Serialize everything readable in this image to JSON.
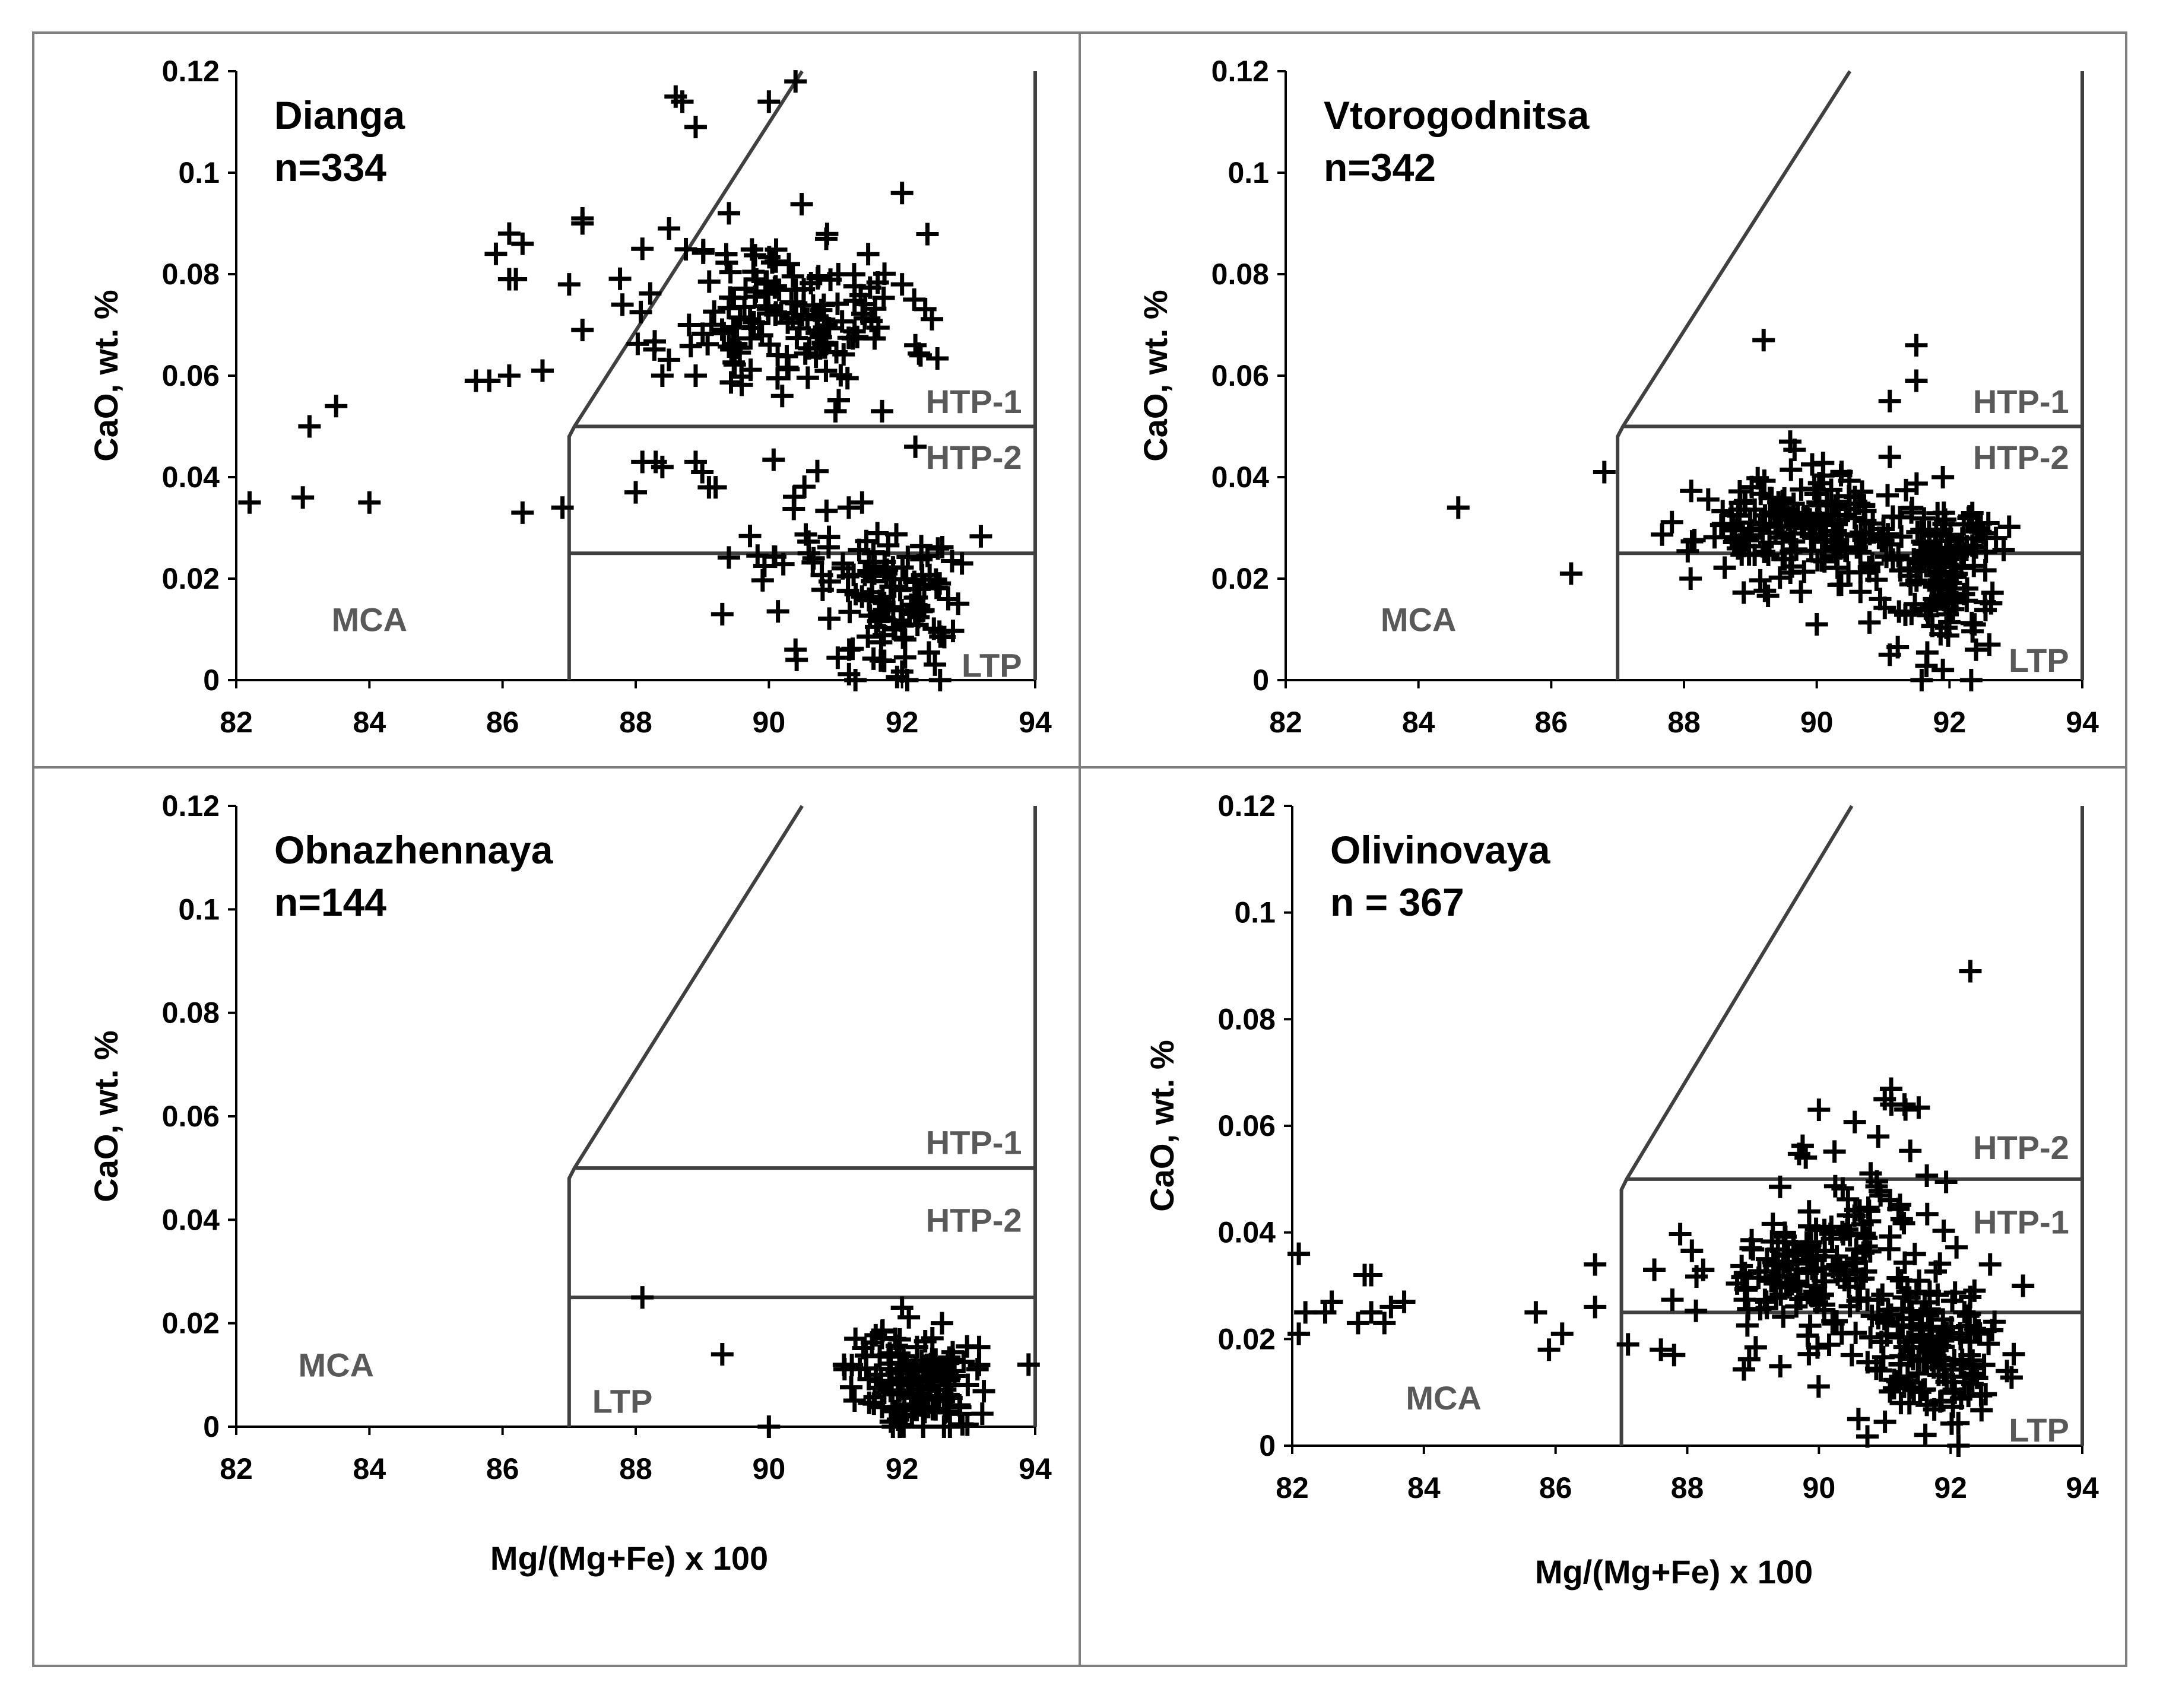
{
  "chart_data": [
    {
      "type": "scatter",
      "title": "Dianga",
      "subtitle": "n=334",
      "xlabel": "",
      "ylabel": "CaO, wt. %",
      "xlim": [
        82,
        94
      ],
      "ylim": [
        0,
        0.12
      ],
      "xticks": [
        "82",
        "84",
        "86",
        "88",
        "90",
        "92",
        "94"
      ],
      "yticks": [
        "0",
        "0.02",
        "0.04",
        "0.06",
        "0.08",
        "0.1",
        "0.12"
      ],
      "fields": {
        "mca": {
          "label": "MCA",
          "at": [
            84,
            0.012
          ]
        },
        "htp1": {
          "label": "HTP-1",
          "at": [
            93.8,
            0.055
          ]
        },
        "htp2": {
          "label": "HTP-2",
          "at": [
            93.8,
            0.044
          ]
        },
        "ltp": {
          "label": "LTP",
          "at": [
            93.8,
            0.003
          ]
        }
      },
      "boundary": {
        "x_cut": 87,
        "y_htp": 0.05,
        "y_ltp": 0.025,
        "diag_top_x": 90.5
      },
      "seed": 11,
      "points": [
        [
          82.2,
          0.035
        ],
        [
          83.0,
          0.036
        ],
        [
          83.1,
          0.05
        ],
        [
          83.5,
          0.054
        ],
        [
          84.0,
          0.035
        ],
        [
          85.6,
          0.059
        ],
        [
          85.8,
          0.059
        ],
        [
          85.9,
          0.084
        ],
        [
          86.1,
          0.088
        ],
        [
          86.1,
          0.079
        ],
        [
          86.2,
          0.079
        ],
        [
          86.3,
          0.086
        ],
        [
          86.1,
          0.06
        ],
        [
          86.3,
          0.033
        ],
        [
          86.6,
          0.061
        ],
        [
          86.9,
          0.034
        ],
        [
          87.0,
          0.078
        ],
        [
          87.2,
          0.09
        ],
        [
          87.2,
          0.091
        ],
        [
          87.2,
          0.069
        ],
        [
          87.8,
          0.074
        ],
        [
          88.1,
          0.085
        ],
        [
          88.1,
          0.043
        ],
        [
          88.3,
          0.043
        ],
        [
          88.0,
          0.037
        ],
        [
          88.4,
          0.042
        ],
        [
          88.5,
          0.089
        ],
        [
          88.4,
          0.06
        ],
        [
          88.6,
          0.115
        ],
        [
          88.7,
          0.114
        ],
        [
          88.8,
          0.07
        ],
        [
          88.9,
          0.109
        ],
        [
          88.9,
          0.06
        ],
        [
          88.9,
          0.043
        ],
        [
          89.0,
          0.041
        ],
        [
          89.1,
          0.038
        ],
        [
          89.2,
          0.038
        ],
        [
          89.3,
          0.013
        ],
        [
          89.4,
          0.092
        ],
        [
          90.0,
          0.114
        ],
        [
          90.4,
          0.118
        ],
        [
          90.2,
          0.056
        ],
        [
          90.5,
          0.072
        ],
        [
          90.3,
          0.082
        ],
        [
          91.0,
          0.053
        ],
        [
          91.7,
          0.053
        ],
        [
          92.0,
          0.096
        ],
        [
          92.0,
          0.078
        ],
        [
          92.2,
          0.066
        ],
        [
          92.2,
          0.046
        ],
        [
          90.6,
          0.025
        ],
        [
          90.4,
          0.006
        ],
        [
          91.2,
          0.034
        ],
        [
          91.4,
          0.035
        ],
        [
          92.9,
          0.023
        ]
      ],
      "clusters": [
        {
          "cx": 90.3,
          "cy": 0.072,
          "sx": 0.9,
          "sy": 0.008,
          "n": 150
        },
        {
          "cx": 91.9,
          "cy": 0.016,
          "sx": 0.55,
          "sy": 0.007,
          "n": 110
        },
        {
          "cx": 90.5,
          "cy": 0.028,
          "sx": 0.5,
          "sy": 0.006,
          "n": 25
        }
      ]
    },
    {
      "type": "scatter",
      "title": "Vtorogodnitsa",
      "subtitle": "n=342",
      "xlabel": "",
      "ylabel": "CaO, wt. %",
      "xlim": [
        82,
        94
      ],
      "ylim": [
        0,
        0.12
      ],
      "xticks": [
        "82",
        "84",
        "86",
        "88",
        "90",
        "92",
        "94"
      ],
      "yticks": [
        "0",
        "0.02",
        "0.04",
        "0.06",
        "0.08",
        "0.1",
        "0.12"
      ],
      "fields": {
        "mca": {
          "label": "MCA",
          "at": [
            84,
            0.012
          ]
        },
        "htp1": {
          "label": "HTP-1",
          "at": [
            93.8,
            0.055
          ]
        },
        "htp2": {
          "label": "HTP-2",
          "at": [
            93.8,
            0.044
          ]
        },
        "ltp": {
          "label": "LTP",
          "at": [
            93.8,
            0.004
          ]
        }
      },
      "boundary": {
        "x_cut": 87,
        "y_htp": 0.05,
        "y_ltp": 0.025,
        "diag_top_x": 90.5
      },
      "seed": 23,
      "points": [
        [
          84.6,
          0.034
        ],
        [
          86.3,
          0.021
        ],
        [
          86.8,
          0.041
        ],
        [
          89.2,
          0.067
        ],
        [
          91.5,
          0.066
        ],
        [
          91.5,
          0.059
        ],
        [
          91.1,
          0.055
        ],
        [
          91.1,
          0.044
        ],
        [
          89.6,
          0.047
        ],
        [
          88.1,
          0.02
        ],
        [
          90.0,
          0.011
        ],
        [
          91.1,
          0.005
        ],
        [
          91.9,
          0.002
        ],
        [
          92.4,
          0.006
        ],
        [
          92.6,
          0.007
        ],
        [
          92.7,
          0.028
        ],
        [
          91.9,
          0.04
        ]
      ],
      "clusters": [
        {
          "cx": 89.7,
          "cy": 0.03,
          "sx": 0.75,
          "sy": 0.005,
          "n": 180
        },
        {
          "cx": 91.8,
          "cy": 0.022,
          "sx": 0.45,
          "sy": 0.008,
          "n": 140
        }
      ]
    },
    {
      "type": "scatter",
      "title": "Obnazhennaya",
      "subtitle": "n=144",
      "xlabel": "Mg/(Mg+Fe) x 100",
      "ylabel": "CaO, wt. %",
      "xlim": [
        82,
        94
      ],
      "ylim": [
        0,
        0.12
      ],
      "xticks": [
        "82",
        "84",
        "86",
        "88",
        "90",
        "92",
        "94"
      ],
      "yticks": [
        "0",
        "0.02",
        "0.04",
        "0.06",
        "0.08",
        "0.1",
        "0.12"
      ],
      "fields": {
        "mca": {
          "label": "MCA",
          "at": [
            83.5,
            0.012
          ]
        },
        "htp1": {
          "label": "HTP-1",
          "at": [
            93.8,
            0.055
          ]
        },
        "htp2": {
          "label": "HTP-2",
          "at": [
            93.8,
            0.04
          ]
        },
        "ltp": {
          "label": "LTP",
          "at": [
            87.8,
            0.005
          ]
        }
      },
      "boundary": {
        "x_cut": 87,
        "y_htp": 0.05,
        "y_ltp": 0.025,
        "diag_top_x": 90.5
      },
      "seed": 37,
      "points": [
        [
          88.1,
          0.025
        ],
        [
          89.3,
          0.014
        ],
        [
          90.0,
          0.0
        ],
        [
          93.9,
          0.012
        ],
        [
          91.3,
          0.017
        ],
        [
          92.0,
          0.023
        ],
        [
          92.6,
          0.02
        ]
      ],
      "clusters": [
        {
          "cx": 92.2,
          "cy": 0.009,
          "sx": 0.45,
          "sy": 0.005,
          "n": 137
        }
      ]
    },
    {
      "type": "scatter",
      "title": "Olivinovaya",
      "subtitle": "n = 367",
      "xlabel": "Mg/(Mg+Fe) x 100",
      "ylabel": "CaO, wt. %",
      "xlim": [
        82,
        94
      ],
      "ylim": [
        0,
        0.12
      ],
      "xticks": [
        "82",
        "84",
        "86",
        "88",
        "90",
        "92",
        "94"
      ],
      "yticks": [
        "0",
        "0.02",
        "0.04",
        "0.06",
        "0.08",
        "0.1",
        "0.12"
      ],
      "fields": {
        "mca": {
          "label": "MCA",
          "at": [
            84.3,
            0.009
          ]
        },
        "htp1": {
          "label": "HTP-1",
          "at": [
            93.8,
            0.042
          ]
        },
        "htp2": {
          "label": "HTP-2",
          "at": [
            93.8,
            0.056
          ]
        },
        "ltp": {
          "label": "LTP",
          "at": [
            93.8,
            0.003
          ]
        }
      },
      "boundary": {
        "x_cut": 87,
        "y_htp": 0.05,
        "y_ltp": 0.025,
        "diag_top_x": 90.5
      },
      "seed": 53,
      "points": [
        [
          82.1,
          0.036
        ],
        [
          82.1,
          0.021
        ],
        [
          82.2,
          0.025
        ],
        [
          82.5,
          0.025
        ],
        [
          82.6,
          0.027
        ],
        [
          83.0,
          0.023
        ],
        [
          83.1,
          0.032
        ],
        [
          83.2,
          0.032
        ],
        [
          83.2,
          0.025
        ],
        [
          83.4,
          0.023
        ],
        [
          83.5,
          0.026
        ],
        [
          83.7,
          0.027
        ],
        [
          85.7,
          0.025
        ],
        [
          85.9,
          0.018
        ],
        [
          86.1,
          0.021
        ],
        [
          86.6,
          0.026
        ],
        [
          86.6,
          0.034
        ],
        [
          87.1,
          0.019
        ],
        [
          87.5,
          0.033
        ],
        [
          87.6,
          0.018
        ],
        [
          87.8,
          0.017
        ],
        [
          92.3,
          0.089
        ],
        [
          91.0,
          0.065
        ],
        [
          91.1,
          0.064
        ],
        [
          91.3,
          0.064
        ],
        [
          90.0,
          0.063
        ],
        [
          90.9,
          0.058
        ],
        [
          90.6,
          0.005
        ],
        [
          92.6,
          0.034
        ],
        [
          93.1,
          0.03
        ]
      ],
      "clusters": [
        {
          "cx": 89.9,
          "cy": 0.031,
          "sx": 0.8,
          "sy": 0.007,
          "n": 150
        },
        {
          "cx": 91.8,
          "cy": 0.017,
          "sx": 0.55,
          "sy": 0.007,
          "n": 140
        },
        {
          "cx": 90.9,
          "cy": 0.045,
          "sx": 0.6,
          "sy": 0.008,
          "n": 40
        }
      ]
    }
  ]
}
